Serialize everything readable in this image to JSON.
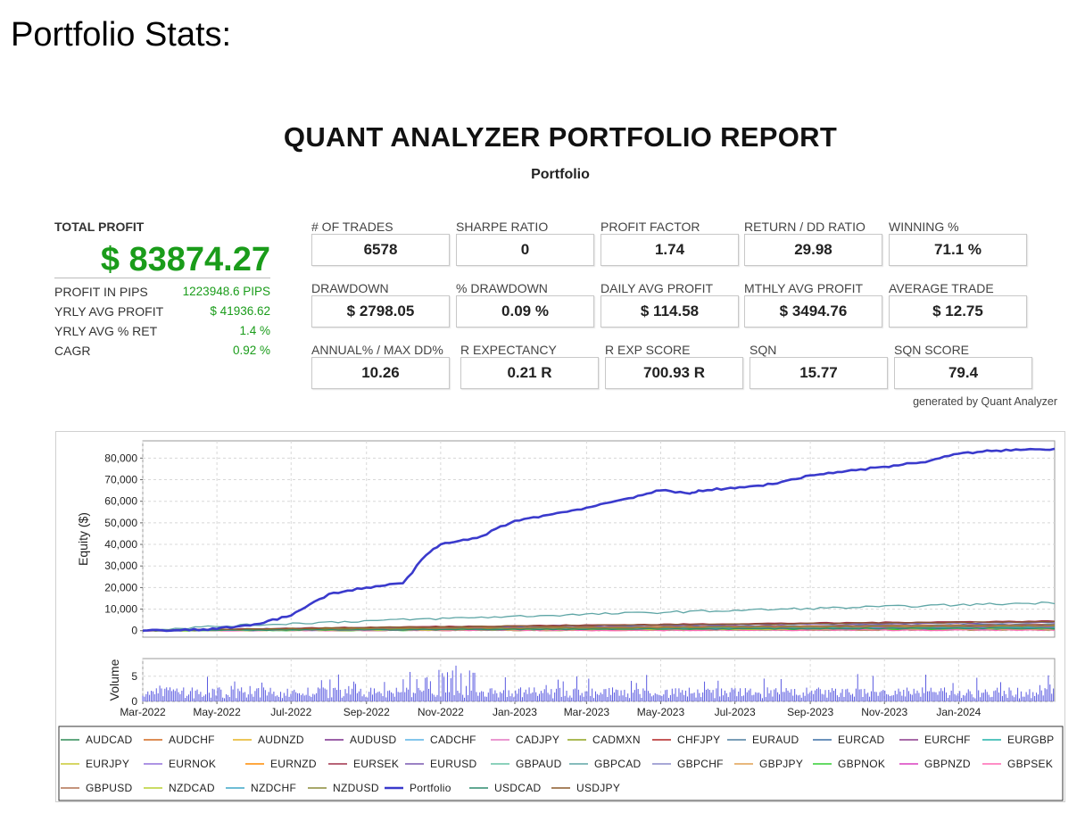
{
  "heading": "Portfolio Stats:",
  "report": {
    "title": "QUANT ANALYZER PORTFOLIO REPORT",
    "subtitle": "Portfolio",
    "generated_by": "generated by Quant Analyzer"
  },
  "summary": {
    "total_profit_label": "TOTAL PROFIT",
    "total_profit_value": "$ 83874.27",
    "rows": [
      {
        "label": "PROFIT IN PIPS",
        "value": "1223948.6 PIPS"
      },
      {
        "label": "YRLY AVG PROFIT",
        "value": "$ 41936.62"
      },
      {
        "label": "YRLY AVG % RET",
        "value": "1.4 %"
      },
      {
        "label": "CAGR",
        "value": "0.92 %"
      }
    ]
  },
  "stats": [
    [
      {
        "label": "# OF TRADES",
        "value": "6578"
      },
      {
        "label": "SHARPE RATIO",
        "value": "0"
      },
      {
        "label": "PROFIT FACTOR",
        "value": "1.74"
      },
      {
        "label": "RETURN / DD RATIO",
        "value": "29.98"
      },
      {
        "label": "WINNING %",
        "value": "71.1 %"
      }
    ],
    [
      {
        "label": "DRAWDOWN",
        "value": "$ 2798.05"
      },
      {
        "label": "% DRAWDOWN",
        "value": "0.09 %"
      },
      {
        "label": "DAILY AVG PROFIT",
        "value": "$ 114.58"
      },
      {
        "label": "MTHLY AVG PROFIT",
        "value": "$ 3494.76"
      },
      {
        "label": "AVERAGE TRADE",
        "value": "$ 12.75"
      }
    ],
    [
      {
        "label": "ANNUAL% / MAX DD%",
        "value": "10.26"
      },
      {
        "label": "R EXPECTANCY",
        "value": "0.21 R"
      },
      {
        "label": "R EXP SCORE",
        "value": "700.93 R"
      },
      {
        "label": "SQN",
        "value": "15.77"
      },
      {
        "label": "SQN SCORE",
        "value": "79.4"
      }
    ]
  ],
  "chart_data": {
    "type": "line",
    "ylabel": "Equity ($)",
    "volume_label": "Volume",
    "x_ticks": [
      "Mar-2022",
      "May-2022",
      "Jul-2022",
      "Sep-2022",
      "Nov-2022",
      "Jan-2023",
      "Mar-2023",
      "May-2023",
      "Jul-2023",
      "Sep-2023",
      "Nov-2023",
      "Jan-2024"
    ],
    "x_range": [
      "2022-03-01",
      "2024-03-20"
    ],
    "ylim": [
      -3000,
      88000
    ],
    "y_ticks": [
      "0",
      "10,000",
      "20,000",
      "30,000",
      "40,000",
      "50,000",
      "60,000",
      "70,000",
      "80,000"
    ],
    "volume_ylim": [
      0,
      8.5
    ],
    "volume_ticks": [
      "0",
      "5"
    ],
    "grid": true,
    "legend_position": "bottom",
    "portfolio": {
      "name": "Portfolio",
      "color": "#3a3acc",
      "points": [
        [
          "2022-03-01",
          0
        ],
        [
          "2022-04-01",
          200
        ],
        [
          "2022-05-01",
          800
        ],
        [
          "2022-06-01",
          3000
        ],
        [
          "2022-07-01",
          7000
        ],
        [
          "2022-08-01",
          17000
        ],
        [
          "2022-09-01",
          20000
        ],
        [
          "2022-10-01",
          22000
        ],
        [
          "2022-10-20",
          35000
        ],
        [
          "2022-11-01",
          40000
        ],
        [
          "2022-12-01",
          43000
        ],
        [
          "2023-01-01",
          51000
        ],
        [
          "2023-02-01",
          54000
        ],
        [
          "2023-03-01",
          57000
        ],
        [
          "2023-04-01",
          61000
        ],
        [
          "2023-05-01",
          65000
        ],
        [
          "2023-05-25",
          63500
        ],
        [
          "2023-06-01",
          65000
        ],
        [
          "2023-07-01",
          66000
        ],
        [
          "2023-08-01",
          68000
        ],
        [
          "2023-09-01",
          72000
        ],
        [
          "2023-10-01",
          74000
        ],
        [
          "2023-11-01",
          76000
        ],
        [
          "2023-12-01",
          78000
        ],
        [
          "2024-01-01",
          82000
        ],
        [
          "2024-02-01",
          83500
        ],
        [
          "2024-03-20",
          84300
        ]
      ]
    },
    "series": [
      {
        "name": "AUDCAD",
        "color": "#2e8b57",
        "final": 800
      },
      {
        "name": "AUDCHF",
        "color": "#d2691e",
        "final": 1200
      },
      {
        "name": "AUDNZD",
        "color": "#e6b422",
        "final": 1500
      },
      {
        "name": "AUDUSD",
        "color": "#7b2d8b",
        "final": 2500
      },
      {
        "name": "CADCHF",
        "color": "#5ab4e6",
        "final": 1000
      },
      {
        "name": "CADJPY",
        "color": "#e377c2",
        "final": 600
      },
      {
        "name": "CADMXN",
        "color": "#8fa31f",
        "final": 400
      },
      {
        "name": "CHFJPY",
        "color": "#b22222",
        "final": 2000
      },
      {
        "name": "EURAUD",
        "color": "#4f7f9f",
        "final": 3000
      },
      {
        "name": "EURCAD",
        "color": "#3b6ea5",
        "final": 1800
      },
      {
        "name": "EURCHF",
        "color": "#8b3a8b",
        "final": 1400
      },
      {
        "name": "EURGBP",
        "color": "#20b2aa",
        "final": 900
      },
      {
        "name": "EURJPY",
        "color": "#c8c832",
        "final": 1100
      },
      {
        "name": "EURNOK",
        "color": "#9370db",
        "final": 700
      },
      {
        "name": "EURNZD",
        "color": "#ff8c00",
        "final": 1600
      },
      {
        "name": "EURSEK",
        "color": "#a0304a",
        "final": 4500
      },
      {
        "name": "EURUSD",
        "color": "#7a58b0",
        "final": 3800
      },
      {
        "name": "GBPAUD",
        "color": "#66c2a5",
        "final": 1300
      },
      {
        "name": "GBPCAD",
        "color": "#5fa6a6",
        "final": 13000
      },
      {
        "name": "GBPCHF",
        "color": "#8c8cc8",
        "final": 1700
      },
      {
        "name": "GBPJPY",
        "color": "#e0a050",
        "final": 2200
      },
      {
        "name": "GBPNOK",
        "color": "#32cd32",
        "final": 500
      },
      {
        "name": "GBPNZD",
        "color": "#da3fbf",
        "final": 1900
      },
      {
        "name": "GBPSEK",
        "color": "#ff69b4",
        "final": 300
      },
      {
        "name": "GBPUSD",
        "color": "#b07050",
        "final": 2800
      },
      {
        "name": "NZDCAD",
        "color": "#b8d030",
        "final": 1000
      },
      {
        "name": "NZDCHF",
        "color": "#3fa7c7",
        "final": 1500
      },
      {
        "name": "NZDUSD",
        "color": "#8b8b3a",
        "final": 2100
      },
      {
        "name": "USDCAD",
        "color": "#2e8b6e",
        "final": 1200
      },
      {
        "name": "USDJPY",
        "color": "#8b5a2b",
        "final": 4200
      }
    ]
  }
}
